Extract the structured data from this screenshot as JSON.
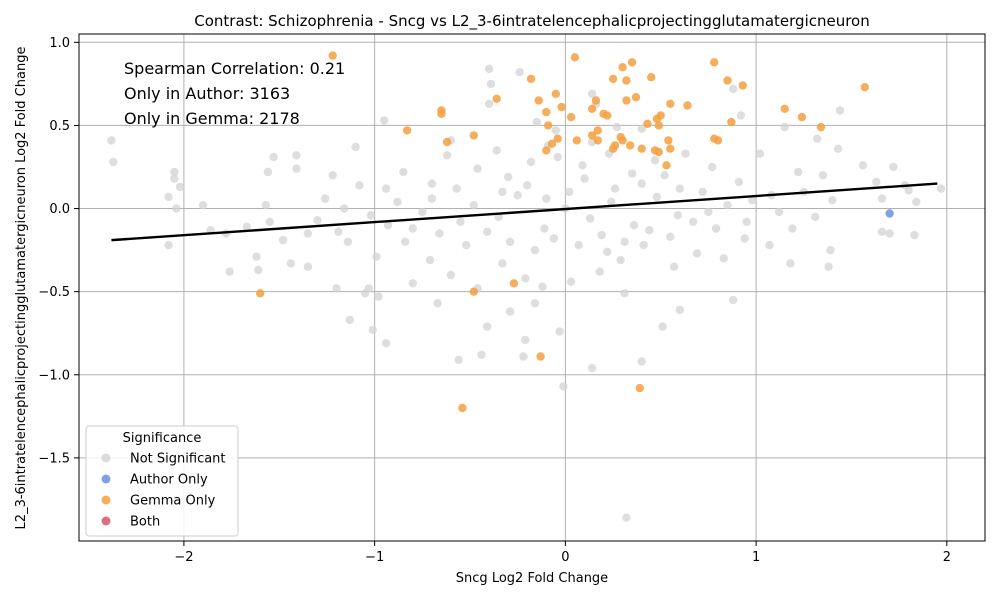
{
  "chart_data": {
    "type": "scatter",
    "title": "Contrast: Schizophrenia - Sncg vs L2_3-6intratelencephalicprojectingglutamatergicneuron",
    "xlabel": "Sncg Log2 Fold Change",
    "ylabel": "L2_3-6intratelencephalicprojectingglutamatergicneuron Log2 Fold Change",
    "xlim": [
      -2.55,
      2.2
    ],
    "ylim": [
      -2.0,
      1.05
    ],
    "xticks": [
      "−2",
      "−1",
      "0",
      "1",
      "2"
    ],
    "xtick_values": [
      -2,
      -1,
      0,
      1,
      2
    ],
    "yticks": [
      "−1.5",
      "−1.0",
      "−0.5",
      "0.0",
      "0.5",
      "1.0"
    ],
    "ytick_values": [
      -1.5,
      -1.0,
      -0.5,
      0.0,
      0.5,
      1.0
    ],
    "grid": true,
    "annotations": [
      "Spearman Correlation: 0.21",
      "Only in Author: 3163",
      "Only in Gemma: 2178"
    ],
    "legend": {
      "title": "Significance",
      "placement": "lower-left",
      "entries": [
        {
          "label": "Not Significant",
          "color": "#d3d3d3"
        },
        {
          "label": "Author Only",
          "color": "#6f8fe0"
        },
        {
          "label": "Gemma Only",
          "color": "#f5a040"
        },
        {
          "label": "Both",
          "color": "#d9536b"
        }
      ]
    },
    "regression_line": {
      "x": [
        -2.38,
        1.95
      ],
      "y": [
        -0.19,
        0.15
      ],
      "color": "#000000"
    },
    "series": [
      {
        "name": "Not Significant",
        "color": "#d3d3d3",
        "points": [
          [
            -2.38,
            0.41
          ],
          [
            -2.37,
            0.28
          ],
          [
            -2.05,
            0.22
          ],
          [
            -2.05,
            0.18
          ],
          [
            -2.02,
            0.13
          ],
          [
            -2.08,
            0.07
          ],
          [
            -2.04,
            0.0
          ],
          [
            -1.9,
            0.02
          ],
          [
            -2.08,
            -0.22
          ],
          [
            -1.76,
            -0.38
          ],
          [
            -1.61,
            -0.37
          ],
          [
            -1.62,
            -0.29
          ],
          [
            -1.53,
            0.31
          ],
          [
            -1.41,
            0.32
          ],
          [
            -1.41,
            0.24
          ],
          [
            -1.56,
            0.22
          ],
          [
            -1.57,
            0.02
          ],
          [
            -1.44,
            -0.33
          ],
          [
            -1.35,
            -0.35
          ],
          [
            -1.2,
            -0.48
          ],
          [
            -1.13,
            -0.67
          ],
          [
            -1.05,
            -0.51
          ],
          [
            -1.03,
            -0.48
          ],
          [
            -0.98,
            -0.53
          ],
          [
            -0.94,
            -0.81
          ],
          [
            -1.01,
            -0.73
          ],
          [
            -0.95,
            0.53
          ],
          [
            -0.6,
            0.41
          ],
          [
            -0.4,
            0.84
          ],
          [
            -0.39,
            0.75
          ],
          [
            -0.4,
            0.63
          ],
          [
            -0.24,
            0.82
          ],
          [
            -0.15,
            0.52
          ],
          [
            -0.05,
            0.47
          ],
          [
            0.14,
            0.69
          ],
          [
            0.16,
            0.63
          ],
          [
            0.27,
            0.49
          ],
          [
            0.4,
            0.48
          ],
          [
            0.88,
            0.72
          ],
          [
            0.92,
            0.56
          ],
          [
            1.02,
            0.33
          ],
          [
            1.15,
            0.49
          ],
          [
            1.32,
            0.42
          ],
          [
            1.44,
            0.59
          ],
          [
            1.43,
            0.36
          ],
          [
            1.22,
            0.22
          ],
          [
            1.56,
            0.26
          ],
          [
            1.63,
            0.16
          ],
          [
            1.72,
            0.25
          ],
          [
            1.78,
            0.14
          ],
          [
            1.8,
            0.11
          ],
          [
            1.66,
            0.06
          ],
          [
            1.84,
            0.04
          ],
          [
            1.97,
            0.12
          ],
          [
            1.66,
            -0.14
          ],
          [
            1.7,
            -0.15
          ],
          [
            1.83,
            -0.16
          ],
          [
            1.39,
            -0.25
          ],
          [
            1.38,
            -0.35
          ],
          [
            1.18,
            -0.33
          ],
          [
            0.88,
            -0.55
          ],
          [
            0.6,
            -0.61
          ],
          [
            0.51,
            -0.71
          ],
          [
            0.4,
            -0.92
          ],
          [
            0.14,
            -0.96
          ],
          [
            0.31,
            -0.51
          ],
          [
            -0.03,
            -0.74
          ],
          [
            -0.01,
            -1.07
          ],
          [
            -0.21,
            -0.79
          ],
          [
            -0.22,
            -0.89
          ],
          [
            -0.16,
            -0.57
          ],
          [
            -0.29,
            -0.62
          ],
          [
            -0.44,
            -0.88
          ],
          [
            -0.41,
            -0.71
          ],
          [
            -0.56,
            -0.91
          ],
          [
            -0.67,
            -0.57
          ],
          [
            0.32,
            -1.86
          ],
          [
            -0.8,
            -0.45
          ],
          [
            -1.1,
            0.37
          ],
          [
            -0.62,
            0.32
          ],
          [
            -0.85,
            0.22
          ],
          [
            -0.7,
            0.15
          ],
          [
            -1.22,
            0.2
          ],
          [
            -1.26,
            0.06
          ],
          [
            -1.19,
            -0.14
          ],
          [
            -1.3,
            -0.07
          ],
          [
            -1.48,
            -0.19
          ],
          [
            -1.67,
            -0.11
          ],
          [
            -1.78,
            -0.15
          ],
          [
            -1.86,
            -0.13
          ],
          [
            -1.14,
            -0.2
          ],
          [
            -0.93,
            -0.1
          ],
          [
            -0.99,
            -0.29
          ],
          [
            -0.84,
            -0.2
          ],
          [
            -0.71,
            -0.31
          ],
          [
            -0.6,
            -0.4
          ],
          [
            -0.46,
            -0.48
          ],
          [
            -0.33,
            -0.33
          ],
          [
            -0.21,
            -0.42
          ],
          [
            -0.12,
            -0.47
          ],
          [
            0.03,
            -0.44
          ],
          [
            0.18,
            -0.38
          ],
          [
            0.29,
            -0.31
          ],
          [
            0.41,
            -0.22
          ],
          [
            0.57,
            -0.35
          ],
          [
            0.69,
            -0.27
          ],
          [
            0.83,
            -0.3
          ],
          [
            0.94,
            -0.18
          ],
          [
            1.07,
            -0.22
          ],
          [
            1.19,
            -0.12
          ],
          [
            1.31,
            -0.05
          ],
          [
            1.08,
            0.08
          ],
          [
            0.91,
            0.16
          ],
          [
            0.77,
            0.25
          ],
          [
            0.63,
            0.33
          ],
          [
            0.47,
            0.29
          ],
          [
            0.35,
            0.21
          ],
          [
            0.23,
            0.33
          ],
          [
            0.09,
            0.26
          ],
          [
            -0.04,
            0.31
          ],
          [
            -0.18,
            0.28
          ],
          [
            -0.3,
            0.19
          ],
          [
            -0.46,
            0.24
          ],
          [
            -0.57,
            0.12
          ],
          [
            -0.48,
            0.02
          ],
          [
            -0.35,
            -0.05
          ],
          [
            -0.25,
            0.08
          ],
          [
            -0.11,
            -0.12
          ],
          [
            0.02,
            0.1
          ],
          [
            0.13,
            -0.06
          ],
          [
            0.24,
            0.04
          ],
          [
            0.36,
            -0.1
          ],
          [
            0.48,
            0.07
          ],
          [
            0.59,
            -0.04
          ],
          [
            0.72,
            0.1
          ],
          [
            0.85,
            0.02
          ],
          [
            0.98,
            0.05
          ],
          [
            -0.75,
            -0.02
          ],
          [
            -0.88,
            0.04
          ],
          [
            -1.02,
            -0.04
          ],
          [
            -1.16,
            0.0
          ],
          [
            -0.66,
            -0.15
          ],
          [
            -0.52,
            -0.22
          ],
          [
            -0.41,
            -0.14
          ],
          [
            -0.29,
            -0.2
          ],
          [
            -0.16,
            -0.25
          ],
          [
            -0.06,
            -0.18
          ],
          [
            0.07,
            -0.22
          ],
          [
            0.19,
            -0.16
          ],
          [
            0.31,
            -0.2
          ],
          [
            0.44,
            -0.13
          ],
          [
            0.55,
            -0.17
          ],
          [
            0.67,
            -0.08
          ],
          [
            0.79,
            -0.12
          ],
          [
            -0.7,
            0.06
          ],
          [
            -0.55,
            -0.08
          ],
          [
            -0.2,
            0.14
          ],
          [
            0.0,
            0.0
          ],
          [
            0.1,
            0.18
          ],
          [
            0.26,
            0.12
          ],
          [
            0.4,
            0.15
          ],
          [
            0.52,
            0.2
          ],
          [
            -0.36,
            0.35
          ],
          [
            -0.09,
            0.38
          ],
          [
            0.14,
            0.4
          ],
          [
            0.22,
            -0.26
          ],
          [
            -0.1,
            0.06
          ],
          [
            -0.33,
            0.1
          ],
          [
            0.6,
            0.12
          ],
          [
            0.75,
            -0.02
          ],
          [
            -0.8,
            -0.12
          ],
          [
            -0.94,
            0.12
          ],
          [
            -1.08,
            0.14
          ],
          [
            1.25,
            0.1
          ],
          [
            1.35,
            0.2
          ],
          [
            1.12,
            -0.02
          ],
          [
            0.95,
            -0.08
          ],
          [
            1.4,
            0.05
          ],
          [
            -1.35,
            -0.15
          ],
          [
            -1.55,
            -0.08
          ]
        ]
      },
      {
        "name": "Author Only",
        "color": "#6f8fe0",
        "points": [
          [
            1.7,
            -0.03
          ]
        ]
      },
      {
        "name": "Gemma Only",
        "color": "#f5a040",
        "points": [
          [
            -1.22,
            0.92
          ],
          [
            0.05,
            0.91
          ],
          [
            0.35,
            0.88
          ],
          [
            0.78,
            0.88
          ],
          [
            0.3,
            0.85
          ],
          [
            -0.18,
            0.78
          ],
          [
            0.25,
            0.78
          ],
          [
            0.32,
            0.77
          ],
          [
            0.45,
            0.79
          ],
          [
            0.85,
            0.77
          ],
          [
            0.93,
            0.74
          ],
          [
            1.57,
            0.73
          ],
          [
            -0.05,
            0.69
          ],
          [
            0.37,
            0.67
          ],
          [
            -0.36,
            0.66
          ],
          [
            -0.14,
            0.65
          ],
          [
            0.16,
            0.65
          ],
          [
            0.32,
            0.65
          ],
          [
            0.55,
            0.63
          ],
          [
            0.64,
            0.62
          ],
          [
            -0.02,
            0.61
          ],
          [
            0.14,
            0.6
          ],
          [
            1.15,
            0.6
          ],
          [
            -0.65,
            0.59
          ],
          [
            -0.1,
            0.58
          ],
          [
            0.2,
            0.57
          ],
          [
            0.5,
            0.56
          ],
          [
            0.22,
            0.56
          ],
          [
            -0.65,
            0.57
          ],
          [
            1.24,
            0.55
          ],
          [
            0.03,
            0.55
          ],
          [
            0.48,
            0.54
          ],
          [
            0.43,
            0.51
          ],
          [
            0.87,
            0.52
          ],
          [
            -0.09,
            0.5
          ],
          [
            0.49,
            0.5
          ],
          [
            1.34,
            0.49
          ],
          [
            -0.83,
            0.47
          ],
          [
            0.17,
            0.47
          ],
          [
            0.14,
            0.44
          ],
          [
            -0.48,
            0.44
          ],
          [
            0.29,
            0.43
          ],
          [
            -0.04,
            0.42
          ],
          [
            0.78,
            0.42
          ],
          [
            0.06,
            0.41
          ],
          [
            0.17,
            0.41
          ],
          [
            0.3,
            0.41
          ],
          [
            0.54,
            0.41
          ],
          [
            0.8,
            0.41
          ],
          [
            -0.62,
            0.4
          ],
          [
            -0.07,
            0.39
          ],
          [
            0.26,
            0.38
          ],
          [
            0.34,
            0.38
          ],
          [
            0.25,
            0.36
          ],
          [
            0.4,
            0.36
          ],
          [
            0.55,
            0.36
          ],
          [
            -0.1,
            0.35
          ],
          [
            0.47,
            0.35
          ],
          [
            0.49,
            0.34
          ],
          [
            0.53,
            0.26
          ],
          [
            -1.6,
            -0.51
          ],
          [
            -0.48,
            -0.5
          ],
          [
            -0.27,
            -0.45
          ],
          [
            -0.13,
            -0.89
          ],
          [
            0.39,
            -1.08
          ],
          [
            -0.54,
            -1.2
          ]
        ]
      },
      {
        "name": "Both",
        "color": "#d9536b",
        "points": []
      }
    ]
  }
}
